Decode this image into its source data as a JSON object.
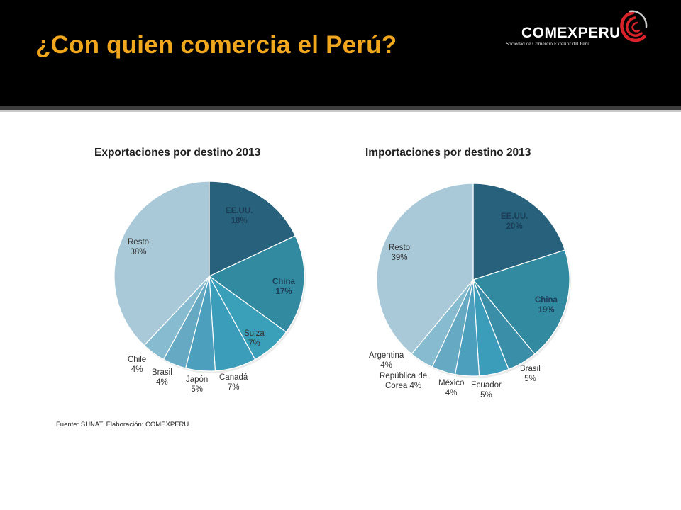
{
  "slide": {
    "title": "¿Con quien comercia el Perú?",
    "logo": {
      "name": "COMEXPERU",
      "tagline": "Sociedad de Comercio Exterior del Perú"
    },
    "source": "Fuente: SUNAT. Elaboración: COMEXPERU.",
    "colors": {
      "header_bg": "#000000",
      "title": "#f0a71d"
    }
  },
  "chart_data": [
    {
      "type": "pie",
      "title": "Exportaciones por destino 2013",
      "categories": [
        "EE.UU.",
        "China",
        "Suiza",
        "Canadá",
        "Japón",
        "Brasil",
        "Chile",
        "Resto"
      ],
      "values": [
        18,
        17,
        7,
        7,
        5,
        4,
        4,
        38
      ],
      "labels": [
        "18%",
        "17%",
        "7%",
        "7%",
        "5%",
        "4%",
        "4%",
        "38%"
      ],
      "colors": [
        "#27617b",
        "#318aa0",
        "#3a9fb8",
        "#3c9dbb",
        "#4d9fbe",
        "#66a9c3",
        "#87bbcf",
        "#a9c9d9"
      ]
    },
    {
      "type": "pie",
      "title": "Importaciones por destino 2013",
      "categories": [
        "EE.UU.",
        "China",
        "Brasil",
        "Ecuador",
        "México",
        "República de Corea",
        "Argentina",
        "Resto"
      ],
      "values": [
        20,
        19,
        5,
        5,
        4,
        4,
        4,
        39
      ],
      "labels": [
        "20%",
        "19%",
        "5%",
        "5%",
        "4%",
        "4%",
        "4%",
        "39%"
      ],
      "colors": [
        "#27617b",
        "#318aa0",
        "#3a8ea8",
        "#3c9dbb",
        "#4d9fbe",
        "#66a9c3",
        "#87bbcf",
        "#a9c9d9"
      ]
    }
  ]
}
